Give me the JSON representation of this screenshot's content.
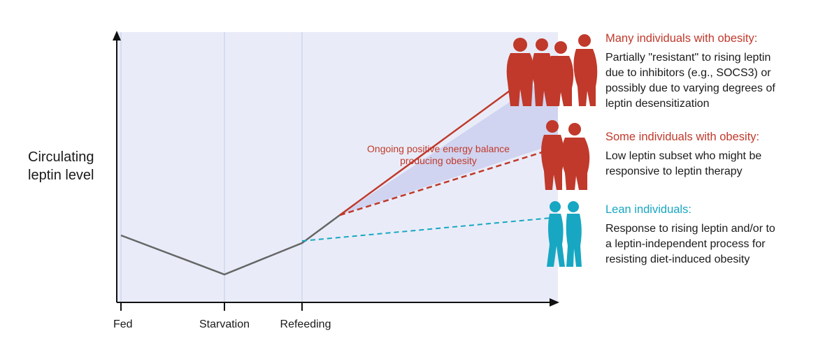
{
  "y_axis_label": "Circulating leptin level",
  "x_ticks": [
    "Fed",
    "Starvation",
    "Refeeding"
  ],
  "annotation": [
    "Ongoing positive energy balance",
    "producing obesity"
  ],
  "groups": [
    {
      "title": "Many individuals with obesity:",
      "body": [
        "Partially \"resistant\" to rising leptin",
        "due to inhibitors (e.g., SOCS3) or",
        "possibly due to varying degrees of",
        "leptin desensitization"
      ],
      "color": "#c0392b"
    },
    {
      "title": "Some individuals with obesity:",
      "body": [
        "Low leptin subset who might be",
        "responsive to leptin therapy"
      ],
      "color": "#c0392b"
    },
    {
      "title": "Lean individuals:",
      "body": [
        "Response to rising leptin and/or to",
        "a leptin-independent process for",
        "resisting diet-induced obesity"
      ],
      "color": "#17a7c2"
    }
  ],
  "colors": {
    "obese": "#c0392b",
    "lean": "#17a7c2",
    "baseline": "#666666",
    "panel": "#e9ecf8",
    "wedge": "#cdd2ee"
  },
  "icons": [
    "obese-silhouettes-icon",
    "lean-silhouettes-icon"
  ]
}
